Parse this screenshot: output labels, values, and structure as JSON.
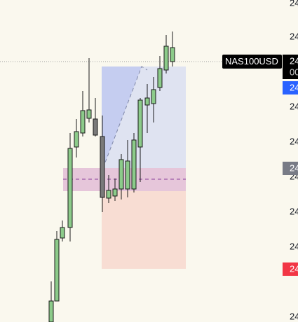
{
  "symbol_label": "NAS100USD",
  "price_axis": {
    "labels": [
      "24",
      "24",
      "24",
      "24",
      "24",
      "24",
      "24",
      "24"
    ]
  },
  "price_tags": {
    "last": [
      "24",
      "00"
    ],
    "target": "24",
    "entry": "24",
    "stop": "24"
  }
}
